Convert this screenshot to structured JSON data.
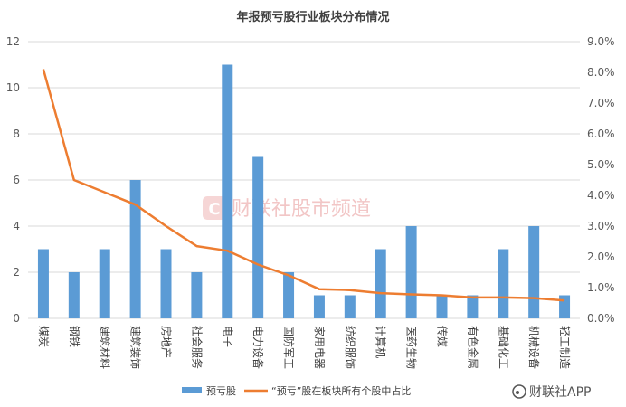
{
  "chart_data": {
    "type": "bar",
    "title": "年报预亏股行业板块分布情况",
    "categories": [
      "煤炭",
      "钢铁",
      "建筑材料",
      "建筑装饰",
      "房地产",
      "社会服务",
      "电子",
      "电力设备",
      "国防军工",
      "家用电器",
      "纺织服饰",
      "计算机",
      "医药生物",
      "传媒",
      "有色金属",
      "基础化工",
      "机械设备",
      "轻工制造"
    ],
    "series": [
      {
        "name": "预亏股",
        "kind": "bar",
        "axis": "left",
        "color": "#5b9bd5",
        "values": [
          3,
          2,
          3,
          6,
          3,
          2,
          11,
          7,
          2,
          1,
          1,
          3,
          4,
          1,
          1,
          3,
          4,
          1
        ]
      },
      {
        "name": "“预亏”股在板块所有个股中占比",
        "kind": "line",
        "axis": "right",
        "color": "#ed7d31",
        "values": [
          8.1,
          4.5,
          4.1,
          3.7,
          3.0,
          2.35,
          2.2,
          1.75,
          1.4,
          0.95,
          0.92,
          0.82,
          0.78,
          0.75,
          0.68,
          0.68,
          0.66,
          0.58
        ]
      }
    ],
    "y_left": {
      "min": 0,
      "max": 12,
      "ticks": [
        "0",
        "2",
        "4",
        "6",
        "8",
        "10",
        "12"
      ]
    },
    "y_right": {
      "min": 0,
      "max": 9,
      "ticks": [
        "0.0%",
        "1.0%",
        "2.0%",
        "3.0%",
        "4.0%",
        "5.0%",
        "6.0%",
        "7.0%",
        "8.0%",
        "9.0%"
      ]
    },
    "grid": true,
    "legend_position": "bottom"
  },
  "watermark": {
    "center_text": "财联社股市频道",
    "corner_text": "财联社APP"
  }
}
